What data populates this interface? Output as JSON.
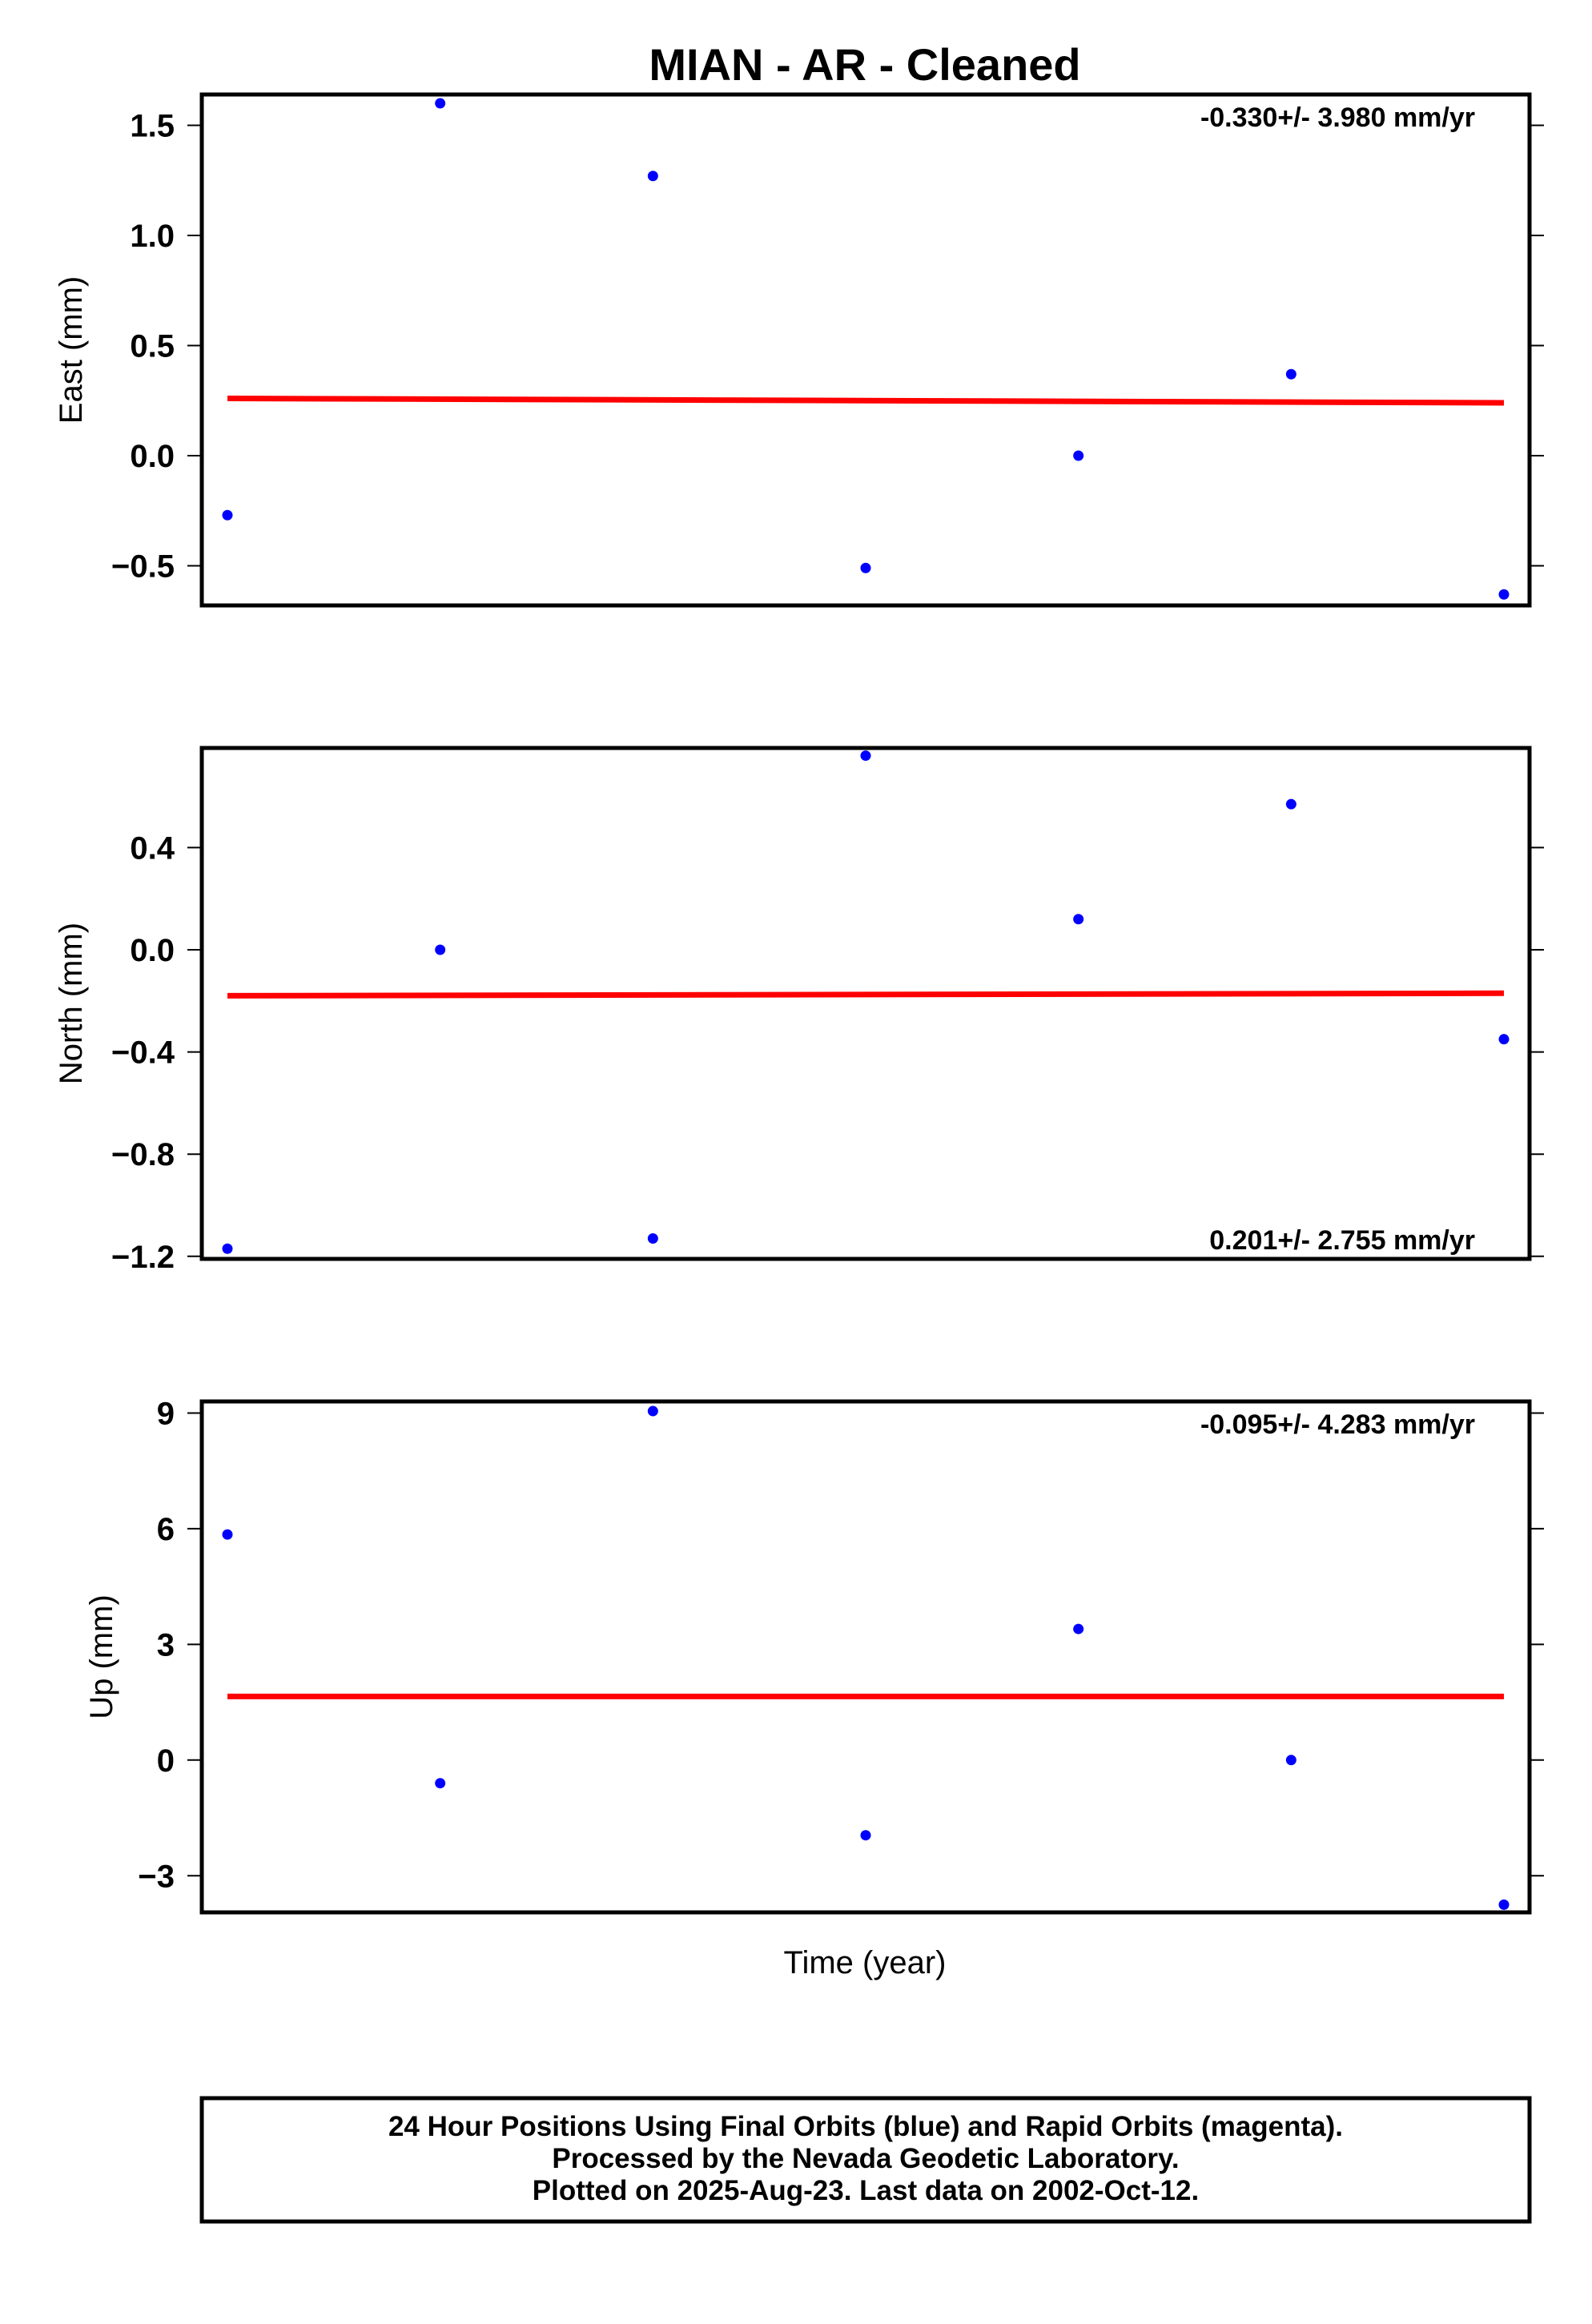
{
  "chart_data": {
    "title": "MIAN  - AR - Cleaned",
    "xlabel": "Time (year)",
    "colors": {
      "points": "#0000ff",
      "fit_line": "#ff0000",
      "frame": "#000000"
    },
    "x_index": [
      0,
      1,
      2,
      3,
      4,
      5,
      6
    ],
    "panels": [
      {
        "type": "scatter",
        "ylabel": "East (mm)",
        "ylim": [
          -0.68,
          1.64
        ],
        "yticks": [
          1.5,
          1.0,
          0.5,
          0.0,
          -0.5
        ],
        "ytick_labels": [
          "1.5",
          "1.0",
          "0.5",
          "0.0",
          "−0.5"
        ],
        "values": [
          -0.27,
          1.6,
          1.27,
          -0.51,
          0.0,
          0.37,
          -0.63
        ],
        "fit": [
          0.26,
          0.24
        ],
        "rate": "-0.330+/- 3.980 mm/yr",
        "rate_position": "top-right"
      },
      {
        "type": "scatter",
        "ylabel": "North (mm)",
        "ylim": [
          -1.21,
          0.79
        ],
        "yticks": [
          0.4,
          0.0,
          -0.4,
          -0.8,
          -1.2
        ],
        "ytick_labels": [
          "0.4",
          "0.0",
          "−0.4",
          "−0.8",
          "−1.2"
        ],
        "values": [
          -1.17,
          0.0,
          -1.13,
          0.76,
          0.12,
          0.57,
          -0.35
        ],
        "fit": [
          -0.18,
          -0.17
        ],
        "rate": "0.201+/- 2.755 mm/yr",
        "rate_position": "bottom-right"
      },
      {
        "type": "scatter",
        "ylabel": "Up (mm)",
        "ylim": [
          -3.95,
          9.3
        ],
        "yticks": [
          9,
          6,
          3,
          0,
          -3
        ],
        "ytick_labels": [
          "9",
          "6",
          "3",
          "0",
          "−3"
        ],
        "values": [
          5.85,
          -0.6,
          9.05,
          -1.95,
          3.4,
          0.0,
          -3.75
        ],
        "fit": [
          1.65,
          1.65
        ],
        "rate": "-0.095+/- 4.283 mm/yr",
        "rate_position": "top-right"
      }
    ]
  },
  "footer": {
    "lines": [
      "24 Hour Positions Using Final Orbits (blue) and Rapid Orbits (magenta).",
      "Processed by the Nevada Geodetic Laboratory.",
      "Plotted on 2025-Aug-23. Last data on 2002-Oct-12."
    ]
  }
}
